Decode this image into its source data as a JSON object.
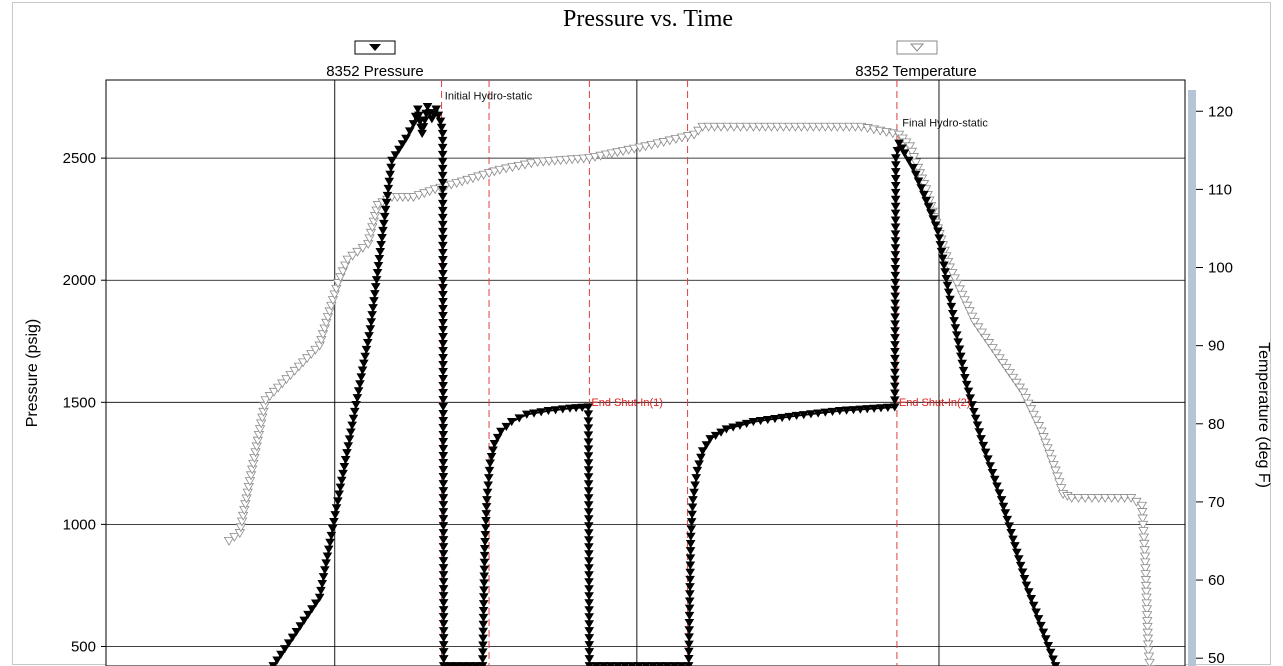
{
  "chart_data": {
    "type": "line",
    "title": "Pressure vs. Time",
    "ylabel": "Pressure (psig)",
    "y2label": "Temperature (deg F)",
    "ylim": [
      420,
      2820
    ],
    "y2lim": [
      49,
      124
    ],
    "yticks": [
      500,
      1000,
      1500,
      2000,
      2500
    ],
    "y2ticks": [
      50,
      60,
      70,
      80,
      90,
      100,
      110,
      120
    ],
    "xlim": [
      0,
      100
    ],
    "x_gridlines": [
      21.2,
      49.2,
      77.2
    ],
    "grid": true,
    "legend": {
      "placement": "top",
      "entries": [
        {
          "label": "8352 Pressure",
          "marker": "filled-triangle-down"
        },
        {
          "label": "8352 Temperature",
          "marker": "hollow-triangle-down"
        }
      ]
    },
    "events": [
      {
        "x": 31.1,
        "label": ""
      },
      {
        "x": 35.5,
        "label": ""
      },
      {
        "x": 44.8,
        "label": "End Shut-In(1)"
      },
      {
        "x": 53.9,
        "label": ""
      },
      {
        "x": 73.3,
        "label": "End Shut-In(2)"
      }
    ],
    "annotations": [
      {
        "text": "Initial Hydro-static",
        "x": 31.4,
        "y": 2740
      },
      {
        "text": "Final Hydro-static",
        "x": 73.8,
        "y": 2630
      }
    ],
    "series": [
      {
        "name": "8352 Pressure",
        "color": "#000000",
        "marker": "filled",
        "x": [
          15.5,
          19.8,
          24.5,
          26.5,
          27.8,
          28.5,
          28.9,
          29.3,
          29.8,
          30.2,
          30.6,
          31.0,
          31.2,
          31.3,
          34.9,
          35.1,
          35.3,
          35.6,
          36.0,
          36.6,
          37.6,
          39.0,
          41.0,
          43.0,
          44.7,
          44.8,
          54.0,
          54.2,
          54.4,
          54.8,
          55.3,
          56.0,
          57.5,
          60.0,
          64.0,
          68.0,
          73.1,
          73.2,
          73.5,
          74.0,
          74.8,
          75.8,
          77.1,
          78.1,
          79.6,
          81.1,
          83.0,
          85.3,
          88.0
        ],
        "y": [
          420,
          700,
          1800,
          2490,
          2580,
          2640,
          2700,
          2600,
          2710,
          2660,
          2700,
          2650,
          2600,
          420,
          420,
          900,
          1100,
          1250,
          1330,
          1380,
          1420,
          1450,
          1465,
          1475,
          1480,
          420,
          420,
          950,
          1100,
          1220,
          1300,
          1350,
          1390,
          1420,
          1445,
          1465,
          1480,
          2500,
          2560,
          2520,
          2460,
          2350,
          2200,
          1950,
          1600,
          1350,
          1100,
          750,
          420
        ]
      },
      {
        "name": "8352 Temperature",
        "color": "#909090",
        "marker": "hollow",
        "x": [
          11.4,
          12.4,
          14.8,
          19.8,
          21.5,
          22.4,
          23.3,
          24.3,
          25.2,
          26.5,
          28.5,
          30.5,
          33.0,
          36.5,
          40.0,
          44.8,
          50.0,
          54.5,
          55.3,
          56.4,
          60.0,
          65.0,
          70.0,
          73.5,
          74.5,
          76.0,
          78.2,
          80.5,
          82.5,
          85.0,
          86.7,
          88.0,
          88.7,
          89.5,
          92.0,
          95.0,
          96.0,
          96.3,
          96.6,
          96.9
        ],
        "y": [
          65,
          66,
          83,
          90,
          98,
          101,
          102,
          103,
          108,
          109,
          109,
          110,
          111,
          112.5,
          113.5,
          114,
          115.5,
          117,
          118,
          118,
          118,
          118,
          118,
          117,
          115.5,
          110,
          100,
          93,
          89,
          84,
          79,
          74,
          71,
          70.5,
          70.5,
          70.5,
          69.5,
          63,
          51,
          47
        ]
      }
    ]
  }
}
